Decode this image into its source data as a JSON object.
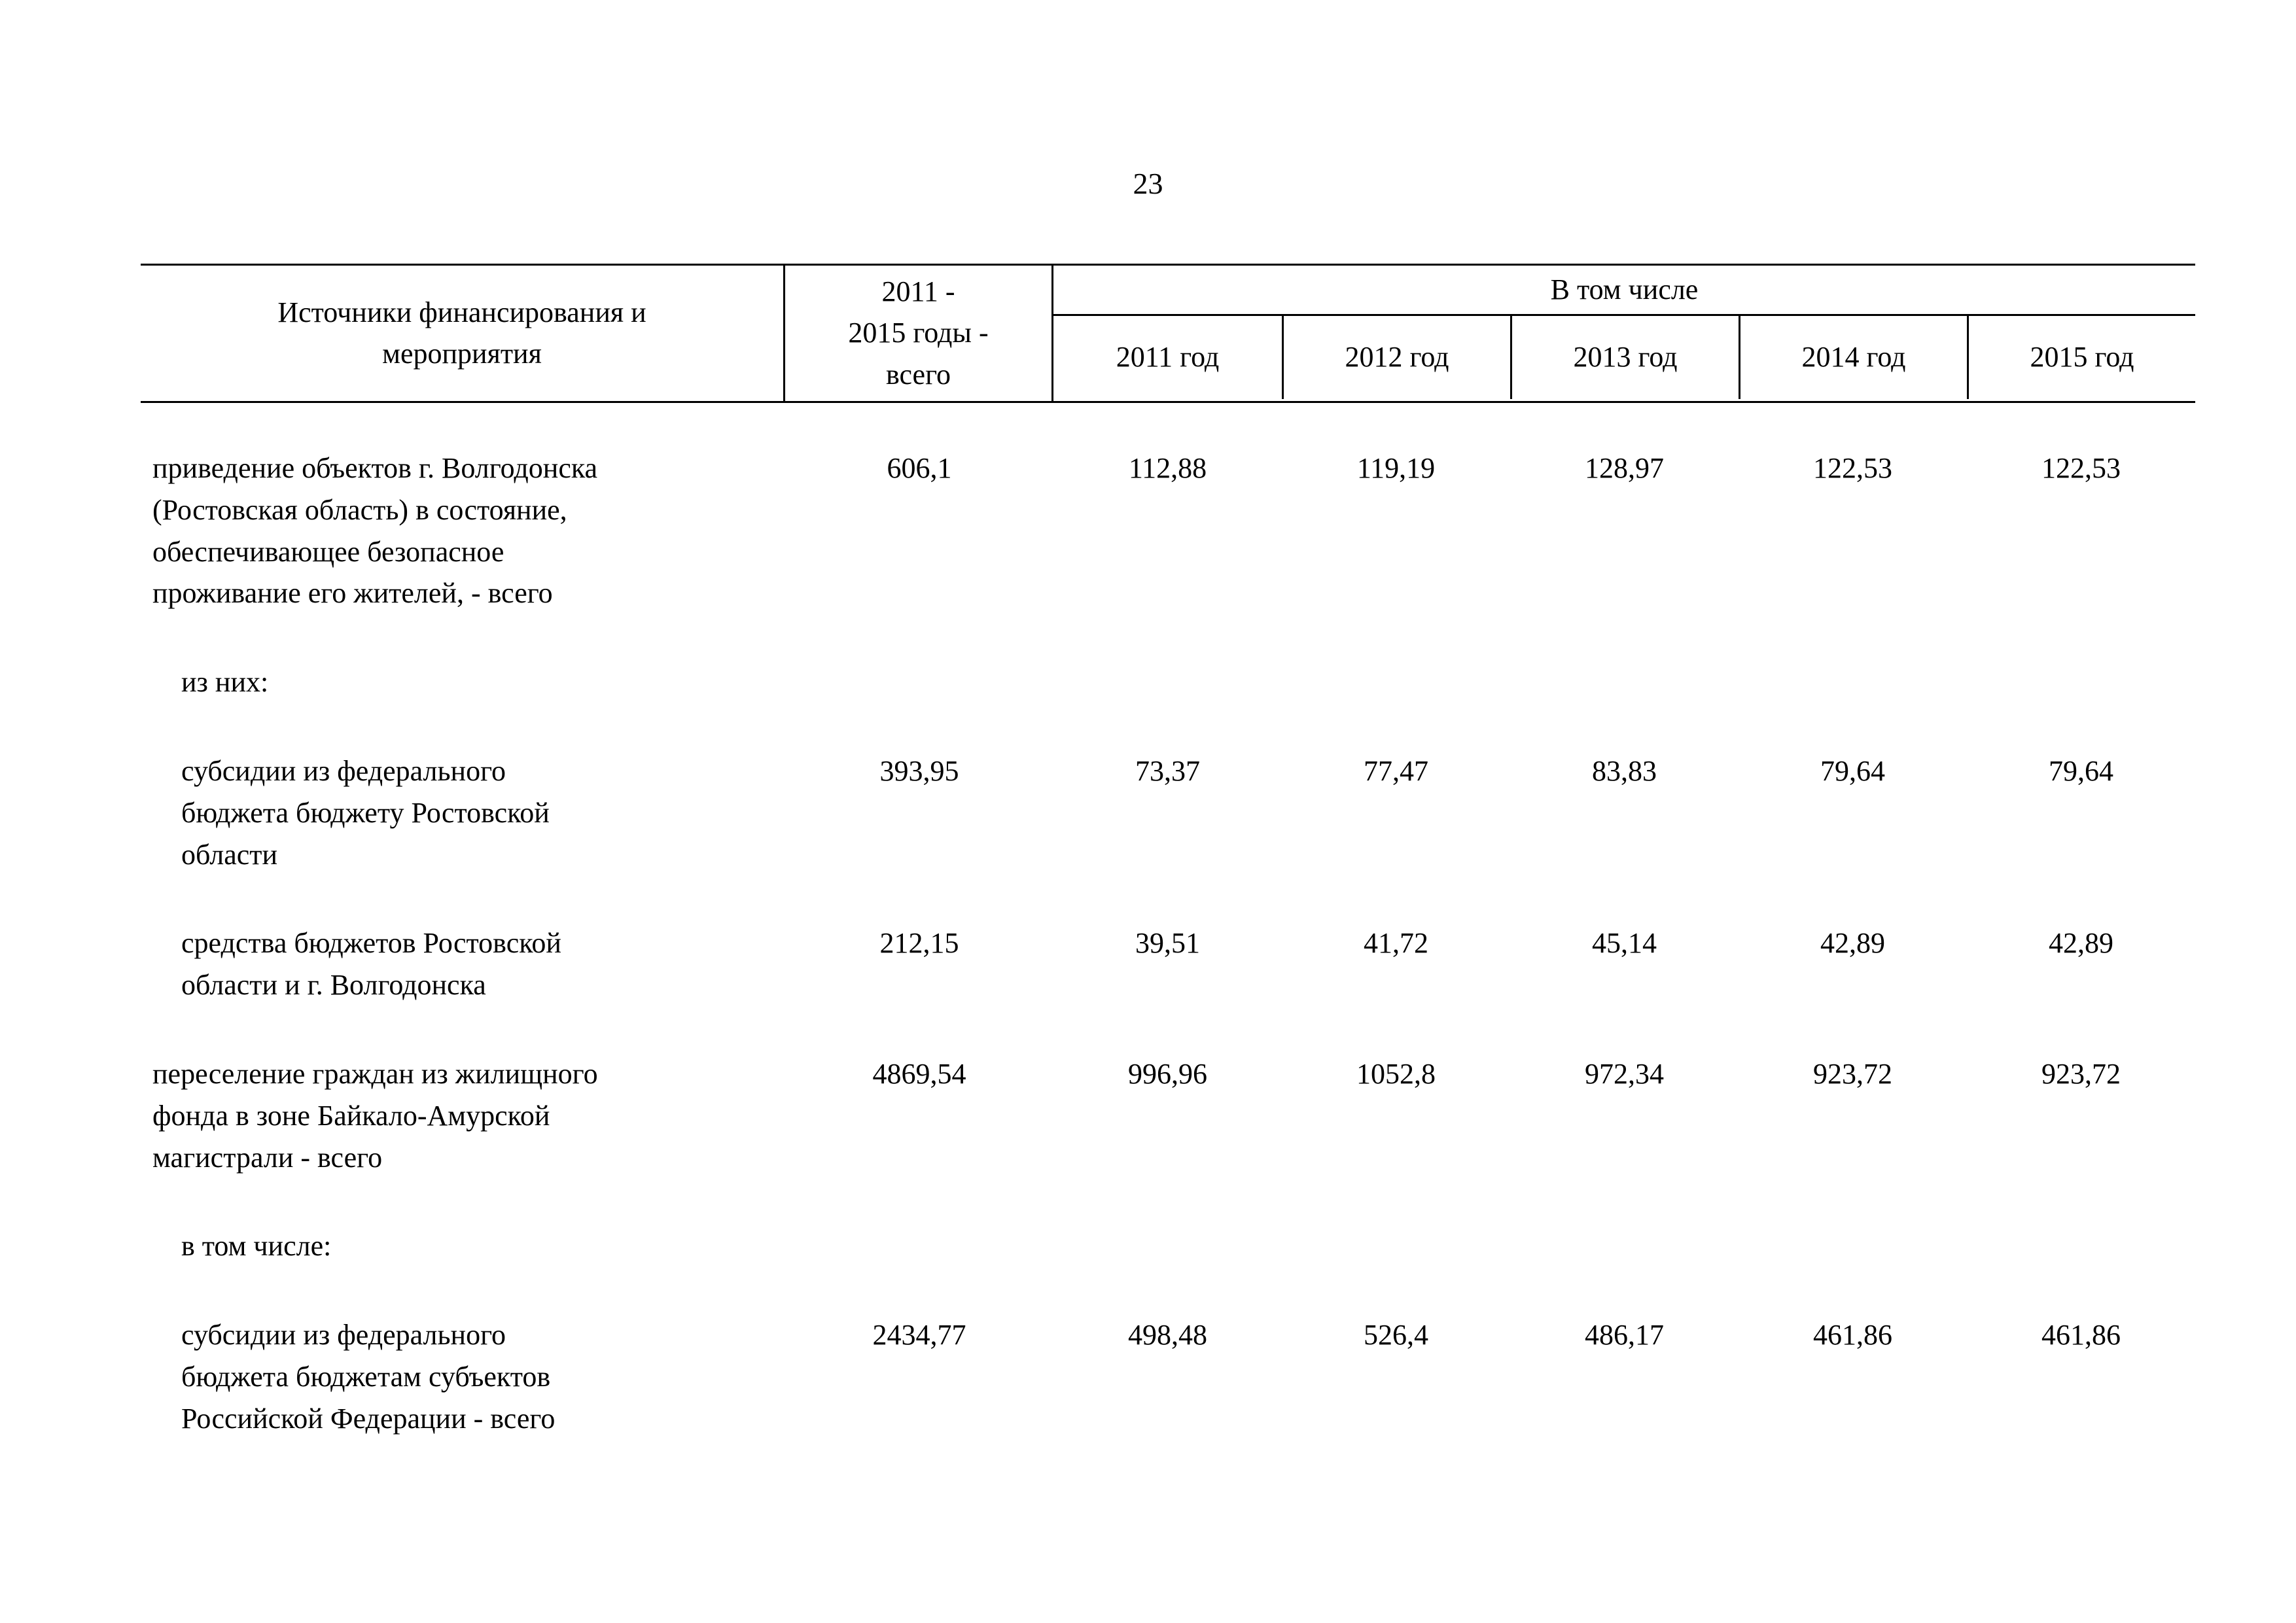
{
  "page": {
    "number": "23"
  },
  "table": {
    "header": {
      "col_source": "Источники финансирования и\nмероприятия",
      "col_total": "2011 -\n2015 годы -\nвсего",
      "group": "В том числе",
      "years": [
        "2011 год",
        "2012 год",
        "2013 год",
        "2014 год",
        "2015 год"
      ]
    },
    "rows": [
      {
        "label": "приведение объектов г. Волгодонска\n(Ростовская область) в состояние,\nобеспечивающее безопасное\nпроживание его жителей, - всего",
        "indent": false,
        "values": [
          "606,1",
          "112,88",
          "119,19",
          "128,97",
          "122,53",
          "122,53"
        ]
      },
      {
        "label": "из них:",
        "indent": true,
        "values": [
          "",
          "",
          "",
          "",
          "",
          ""
        ]
      },
      {
        "label": "субсидии из федерального\nбюджета бюджету Ростовской\nобласти",
        "indent": true,
        "values": [
          "393,95",
          "73,37",
          "77,47",
          "83,83",
          "79,64",
          "79,64"
        ]
      },
      {
        "label": "средства бюджетов Ростовской\nобласти и г. Волгодонска",
        "indent": true,
        "values": [
          "212,15",
          "39,51",
          "41,72",
          "45,14",
          "42,89",
          "42,89"
        ]
      },
      {
        "label": "переселение граждан из жилищного\nфонда в зоне Байкало-Амурской\nмагистрали - всего",
        "indent": false,
        "values": [
          "4869,54",
          "996,96",
          "1052,8",
          "972,34",
          "923,72",
          "923,72"
        ]
      },
      {
        "label": "в том числе:",
        "indent": true,
        "values": [
          "",
          "",
          "",
          "",
          "",
          ""
        ]
      },
      {
        "label": "субсидии из федерального\nбюджета бюджетам субъектов\nРоссийской Федерации - всего",
        "indent": true,
        "values": [
          "2434,77",
          "498,48",
          "526,4",
          "486,17",
          "461,86",
          "461,86"
        ]
      }
    ]
  }
}
